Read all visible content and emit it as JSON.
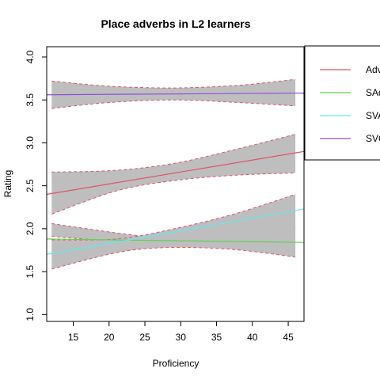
{
  "chart_data": {
    "type": "line",
    "title": "Place adverbs in L2 learners",
    "xlabel": "Proficiency",
    "ylabel": "Rating",
    "xlim": [
      11.3,
      47.2
    ],
    "ylim": [
      0.92,
      4.12
    ],
    "xticks": [
      "15",
      "20",
      "25",
      "30",
      "35",
      "40",
      "45"
    ],
    "yticks": [
      "1.0",
      "1.5",
      "2.0",
      "2.5",
      "3.0",
      "3.5",
      "4.0"
    ],
    "grid": false,
    "legend_position": "top-right",
    "series": [
      {
        "name": "AdvSVO",
        "color": "#DF536B",
        "line": [
          [
            11.3,
            2.4
          ],
          [
            47.2,
            2.9
          ]
        ],
        "band_x": [
          12,
          21,
          29,
          37,
          46
        ],
        "band_lower": [
          2.17,
          2.44,
          2.56,
          2.62,
          2.65
        ],
        "band_upper": [
          2.66,
          2.68,
          2.76,
          2.91,
          3.1
        ]
      },
      {
        "name": "SAdvVO",
        "color": "#61D04F",
        "line": [
          [
            11.3,
            1.88
          ],
          [
            47.2,
            1.84
          ]
        ],
        "band_x": [
          12,
          22,
          29,
          36,
          46
        ],
        "band_lower": [
          1.91,
          1.85,
          1.85,
          1.9,
          2.03
        ],
        "band_upper": [
          2.06,
          1.94,
          1.88,
          1.85,
          1.99
        ]
      },
      {
        "name": "SVAdvO",
        "color": "#61E8F5",
        "line": [
          [
            11.3,
            1.7
          ],
          [
            47.2,
            2.23
          ]
        ],
        "band_x": [
          12,
          21,
          28,
          37,
          46
        ],
        "band_lower": [
          1.53,
          1.72,
          1.78,
          1.76,
          1.67
        ],
        "band_upper": [
          1.87,
          1.88,
          1.98,
          2.16,
          2.4
        ]
      },
      {
        "name": "SVOAdv",
        "color": "#8E4FE0",
        "line": [
          [
            11.3,
            3.56
          ],
          [
            47.2,
            3.58
          ]
        ],
        "band_x": [
          12,
          20,
          29,
          38,
          46
        ],
        "band_lower": [
          3.4,
          3.47,
          3.5,
          3.47,
          3.43
        ],
        "band_upper": [
          3.72,
          3.66,
          3.64,
          3.67,
          3.74
        ]
      }
    ],
    "band_fill": "#BEBEBE",
    "band_edge_color": "#DF536B"
  }
}
